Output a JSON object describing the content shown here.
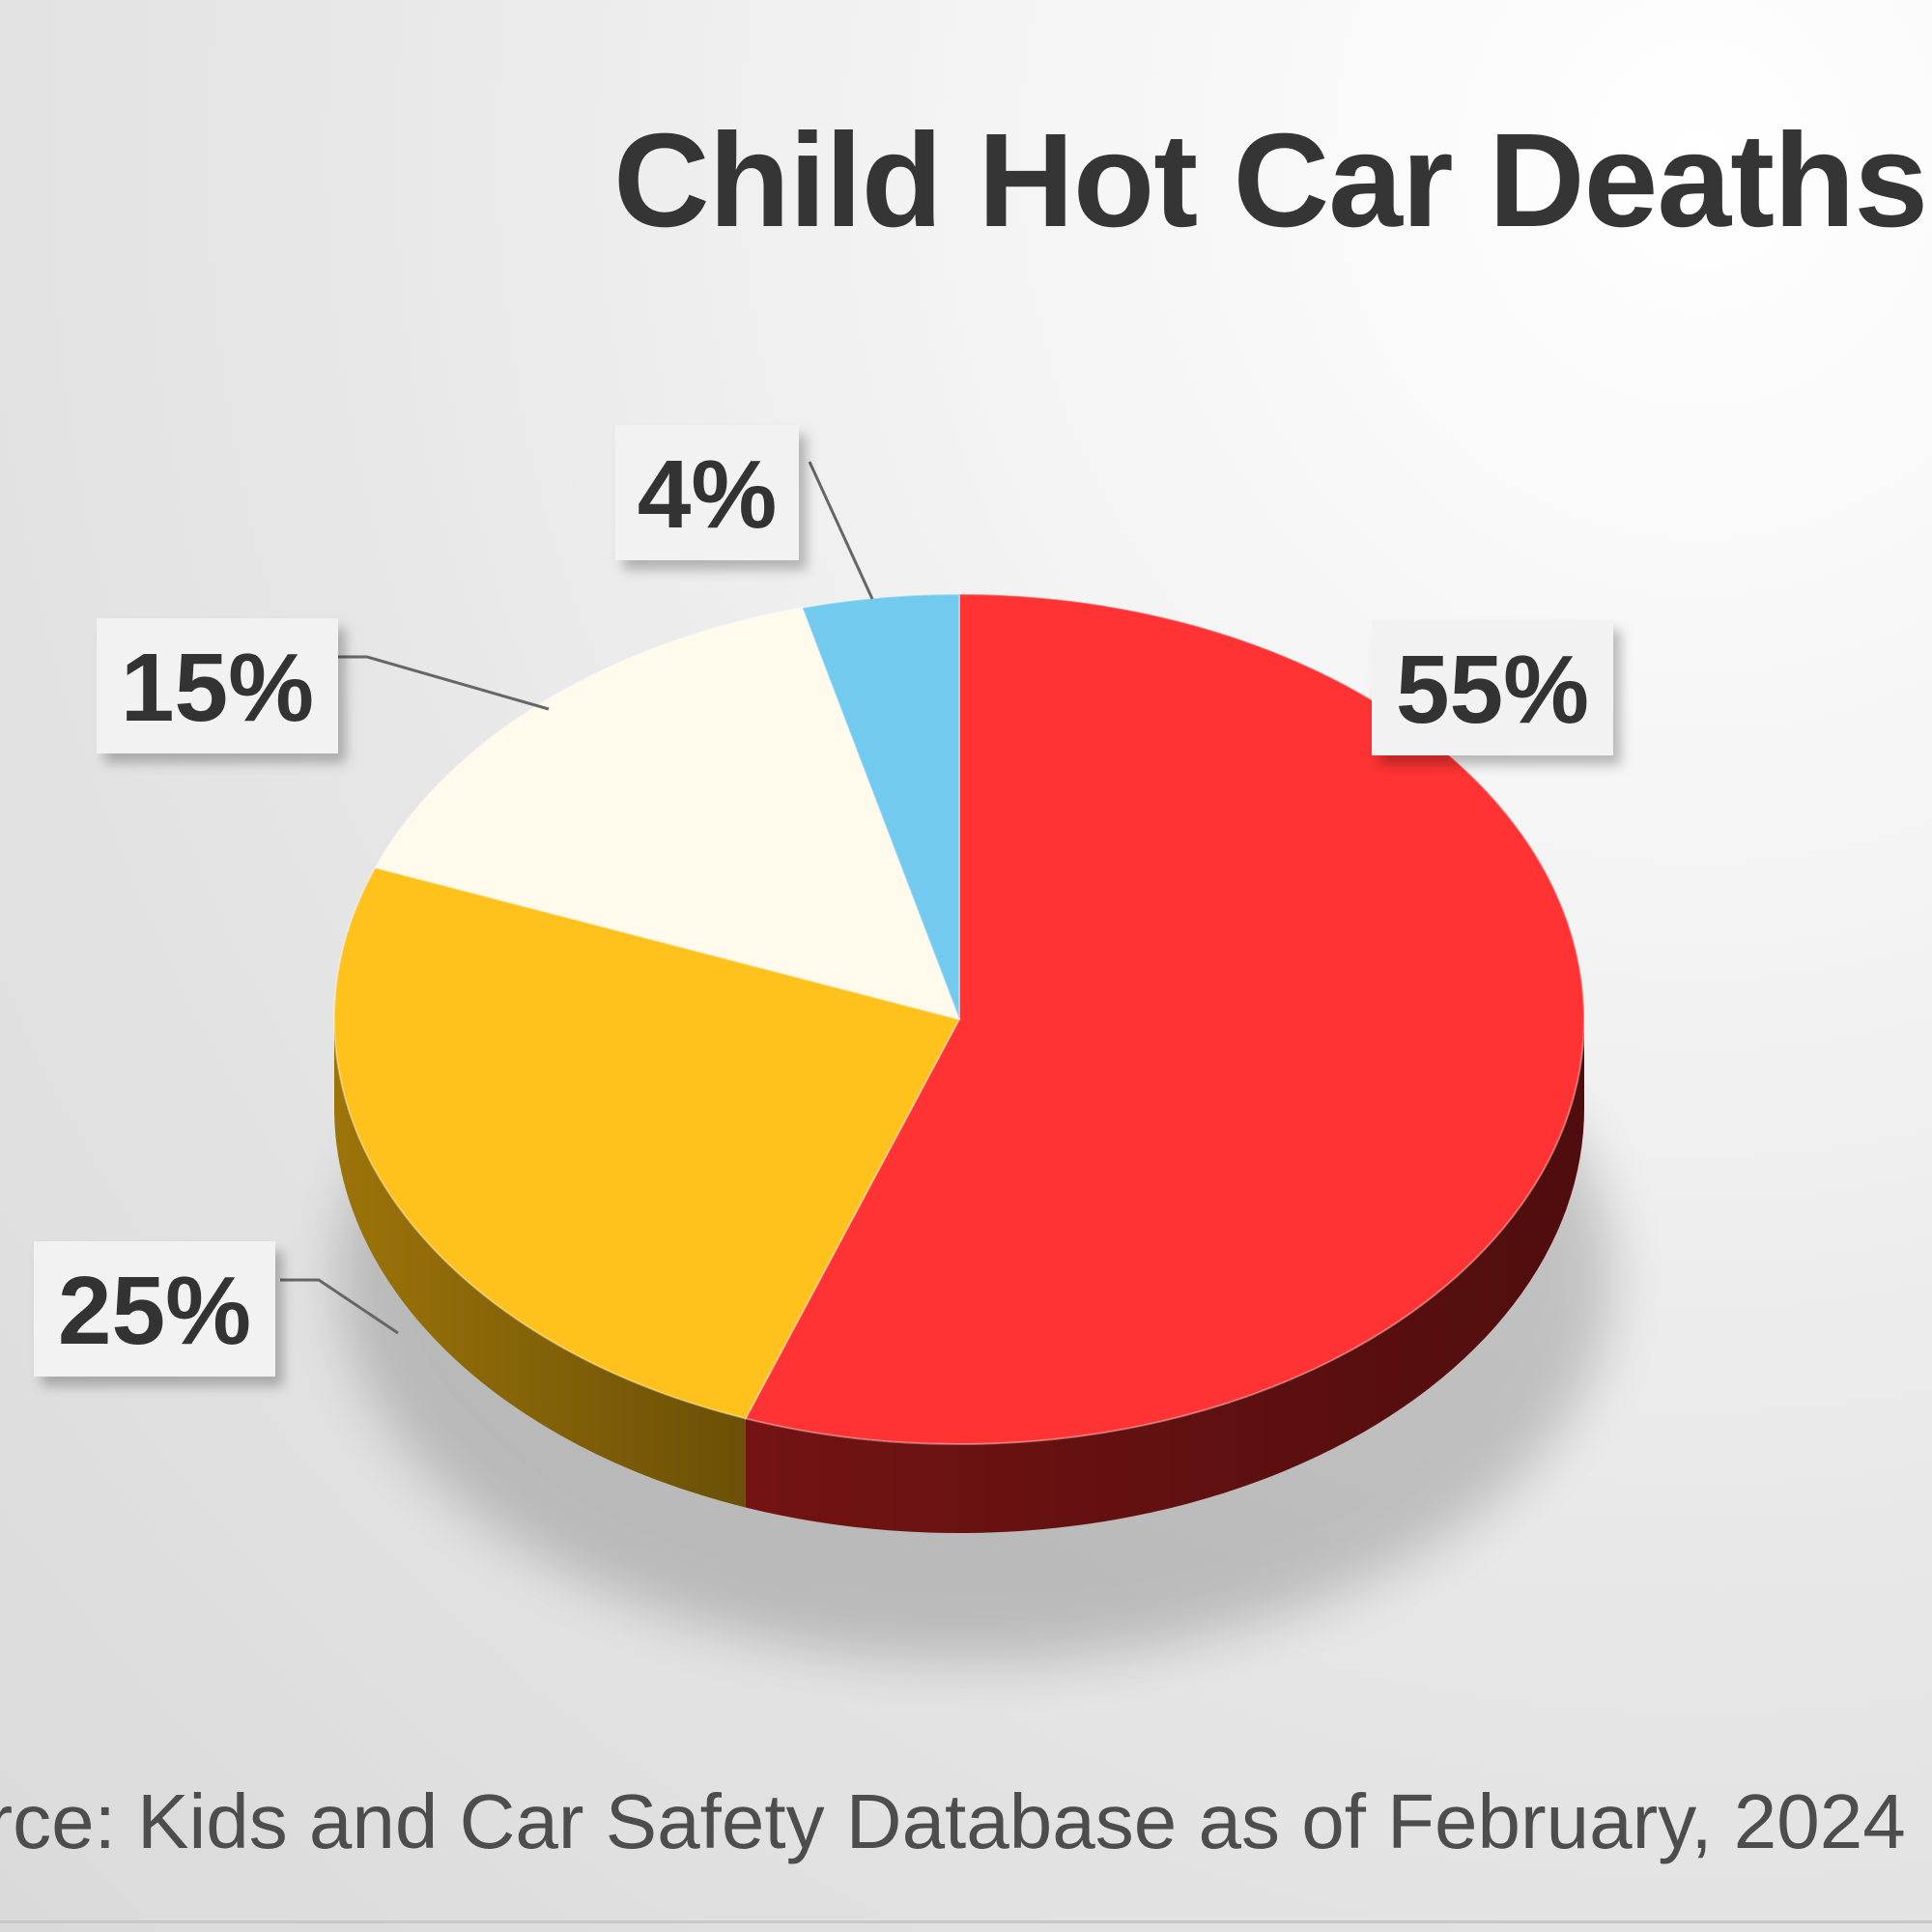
{
  "chart_data": {
    "type": "pie",
    "title": "Child Hot Car Deaths",
    "source": "urce: Kids and Car Safety Database as of February, 2024",
    "slices": [
      {
        "value": 55,
        "label": "55%",
        "color": "#ff3333",
        "side_color": "#7a1414"
      },
      {
        "value": 25,
        "label": "25%",
        "color": "#ffc21c",
        "side_color": "#a47a0a"
      },
      {
        "value": 15,
        "label": "15%",
        "color": "#fffaec",
        "side_color": "#d8d2c0"
      },
      {
        "value": 4,
        "label": "4%",
        "color": "#72caee",
        "side_color": "#3f8fb3"
      }
    ]
  }
}
